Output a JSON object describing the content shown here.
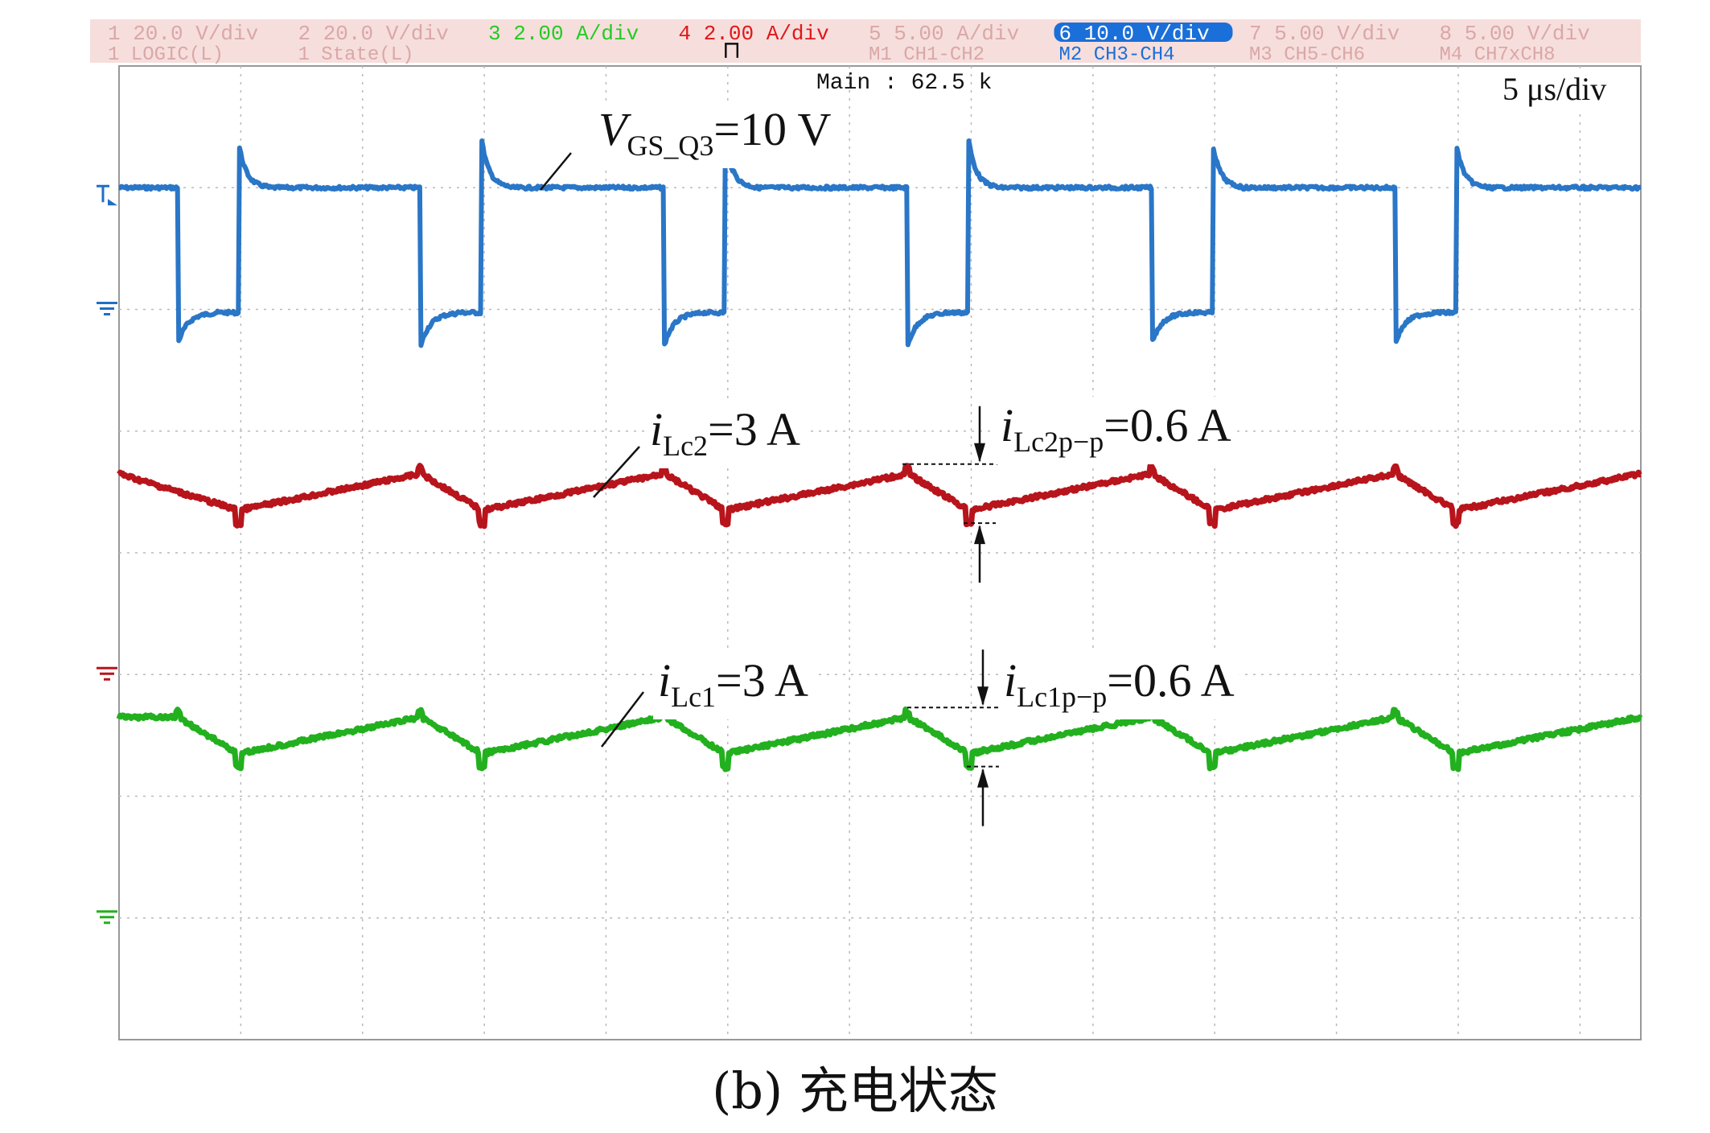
{
  "header": {
    "channels": [
      {
        "line1": "1 20.0 V/div",
        "line2": "1 LOGIC(L)",
        "color": "#d9a8a6"
      },
      {
        "line1": "2 20.0 V/div",
        "line2": "1 State(L)",
        "color": "#d9a8a6"
      },
      {
        "line1": "3 2.00 A/div",
        "line2": "",
        "color": "#22cc22"
      },
      {
        "line1": "4 2.00 A/div",
        "line2": "",
        "color": "#e01818"
      },
      {
        "line1": "5 5.00 A/div",
        "line2": "M1 CH1-CH2",
        "color": "#d9a8a6"
      },
      {
        "line1": "6 10.0 V/div",
        "line2": "M2 CH3-CH4",
        "color": "#1a6fd8"
      },
      {
        "line1": "7 5.00 V/div",
        "line2": "M3 CH5-CH6",
        "color": "#d9a8a6"
      },
      {
        "line1": "8 5.00 V/div",
        "line2": "M4 CH7xCH8",
        "color": "#d9a8a6"
      }
    ],
    "main_label": "Main : 62.5 k",
    "timebase": "5 μs/div"
  },
  "chart_data": {
    "type": "line",
    "title": "",
    "xlabel": "",
    "ylabel": "",
    "x_unit": "μs",
    "x_range": [
      0,
      62.5
    ],
    "grid": true,
    "grid_divisions": {
      "x": 12.5,
      "y": 8
    },
    "series": [
      {
        "name": "VGS_Q3",
        "channel": 6,
        "color": "#1f6fc4",
        "ground_level_div": 6.0,
        "levels_div": {
          "high": 7.0,
          "low": 6.0
        },
        "volts_per_div": 10.0,
        "period_us": 10.0,
        "low_segments_us": [
          [
            2.4,
            4.9
          ],
          [
            12.4,
            14.9
          ],
          [
            22.4,
            24.9
          ],
          [
            32.4,
            34.9
          ],
          [
            42.4,
            44.9
          ],
          [
            52.4,
            54.9
          ]
        ]
      },
      {
        "name": "iLc2",
        "channel": 4,
        "color": "#b8141c",
        "ground_level_div": 3.0,
        "amps_per_div": 2.0,
        "mean_A": 3.0,
        "ripple_pp_A": 0.6,
        "peaks_us": [
          0,
          12.4,
          22.4,
          32.4,
          42.4,
          52.4,
          62.5
        ],
        "troughs_us": [
          4.9,
          14.9,
          24.9,
          34.9,
          44.9,
          54.9
        ]
      },
      {
        "name": "iLc1",
        "channel": 3,
        "color": "#22b01e",
        "ground_level_div": 1.0,
        "amps_per_div": 2.0,
        "mean_A": 3.0,
        "ripple_pp_A": 0.6,
        "peaks_us": [
          2.4,
          12.4,
          22.4,
          32.4,
          42.4,
          52.4,
          62.5
        ],
        "troughs_us": [
          4.9,
          14.9,
          24.9,
          34.9,
          44.9,
          54.9
        ]
      }
    ],
    "annotations": {
      "vgs": {
        "main": "V",
        "sub": "GS_Q3",
        "value": "=10 V"
      },
      "ilc2": {
        "main": "i",
        "sub": "Lc2",
        "value": "=3 A"
      },
      "ilc2pp": {
        "main": "i",
        "sub": "Lc2p−p",
        "value": "=0.6 A"
      },
      "ilc1": {
        "main": "i",
        "sub": "Lc1",
        "value": "=3 A"
      },
      "ilc1pp": {
        "main": "i",
        "sub": "Lc1p−p",
        "value": "=0.6 A"
      }
    }
  },
  "caption": "(b) 充电状态"
}
